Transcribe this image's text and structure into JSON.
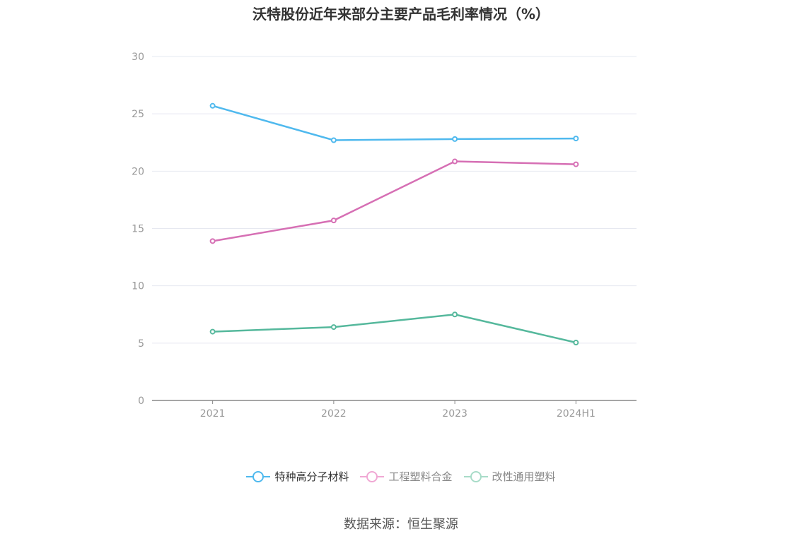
{
  "chart_data": {
    "type": "line",
    "title": "沃特股份近年来部分主要产品毛利率情况（%）",
    "categories": [
      "2021",
      "2022",
      "2023",
      "2024H1"
    ],
    "series": [
      {
        "name": "特种高分子材料",
        "values": [
          25.7,
          22.7,
          22.8,
          22.85
        ],
        "color": "#4fb9ee"
      },
      {
        "name": "工程塑料合金",
        "values": [
          13.9,
          15.7,
          20.85,
          20.6
        ],
        "color": "#d66fb4"
      },
      {
        "name": "改性通用塑料",
        "values": [
          6.0,
          6.4,
          7.5,
          5.05
        ],
        "color": "#55b89c"
      }
    ],
    "ylim": [
      0,
      30
    ],
    "yticks": [
      "0",
      "5",
      "10",
      "15",
      "20",
      "25",
      "30"
    ],
    "grid": true,
    "legend_position": "bottom"
  },
  "legend_colors": {
    "特种高分子材料": "#4fb9ee",
    "工程塑料合金": "#f0a8d4",
    "改性通用塑料": "#a8dcc8"
  },
  "legend_text_colors": [
    "#333333",
    "#888888",
    "#888888"
  ],
  "source": "数据来源：恒生聚源"
}
